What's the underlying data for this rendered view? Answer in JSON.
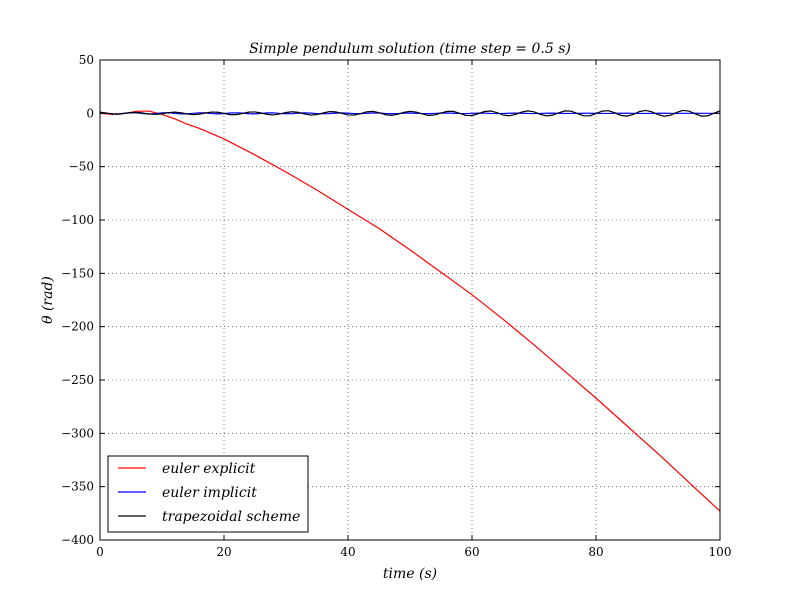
{
  "chart_data": {
    "type": "line",
    "title": "Simple pendulum solution (time step = 0.5 s)",
    "xlabel": "time (s)",
    "ylabel": "θ (rad)",
    "xlim": [
      0,
      100
    ],
    "ylim": [
      -400,
      50
    ],
    "xticks": [
      0,
      20,
      40,
      60,
      80,
      100
    ],
    "yticks": [
      50,
      0,
      -50,
      -100,
      -150,
      -200,
      -250,
      -300,
      -350,
      -400
    ],
    "xtick_labels": [
      "0",
      "20",
      "40",
      "60",
      "80",
      "100"
    ],
    "ytick_labels": [
      "50",
      "0",
      "−50",
      "−100",
      "−150",
      "−200",
      "−250",
      "−300",
      "−350",
      "−400"
    ],
    "grid": true,
    "legend_position": "lower-left",
    "series": [
      {
        "name": "euler explicit",
        "color": "#ff0000",
        "x": [
          0,
          2,
          4,
          6,
          8,
          10,
          12,
          14,
          16,
          18,
          20,
          25,
          30,
          35,
          40,
          45,
          50,
          55,
          60,
          65,
          70,
          75,
          80,
          85,
          90,
          95,
          100
        ],
        "y": [
          0,
          -1,
          0,
          2,
          2,
          -1,
          -5,
          -10,
          -14,
          -19,
          -24,
          -39,
          -55,
          -72,
          -90,
          -108,
          -128,
          -149,
          -170,
          -193,
          -217,
          -242,
          -267,
          -293,
          -319,
          -346,
          -373
        ]
      },
      {
        "name": "euler implicit",
        "color": "#0000ff",
        "x": [
          0,
          1,
          2,
          3,
          4,
          5,
          6,
          7,
          8,
          9,
          10,
          11,
          12,
          13,
          14,
          15,
          16,
          17,
          18,
          19,
          20,
          21,
          22,
          23,
          24,
          25,
          26,
          27,
          28,
          29,
          30,
          31,
          32,
          33,
          34,
          35,
          36,
          37,
          38,
          39,
          40,
          41,
          42,
          43,
          44,
          45,
          46,
          47,
          48,
          49,
          50,
          51,
          52,
          53,
          54,
          55,
          56,
          57,
          58,
          59,
          60,
          61,
          62,
          63,
          64,
          65,
          66,
          67,
          68,
          69,
          70,
          71,
          72,
          73,
          74,
          75,
          76,
          77,
          78,
          79,
          80,
          81,
          82,
          83,
          84,
          85,
          86,
          87,
          88,
          89,
          90,
          91,
          92,
          93,
          94,
          95,
          96,
          97,
          98,
          99,
          100
        ],
        "y": [
          1.0,
          0.2,
          -0.6,
          -0.6,
          0.1,
          0.6,
          0.4,
          -0.3,
          -0.6,
          -0.2,
          0.4,
          0.6,
          0.1,
          -0.5,
          -0.5,
          0.0,
          0.5,
          0.4,
          -0.2,
          -0.5,
          -0.3,
          0.3,
          0.5,
          0.2,
          -0.4,
          -0.5,
          -0.1,
          0.4,
          0.4,
          -0.1,
          -0.4,
          -0.3,
          0.2,
          0.4,
          0.2,
          -0.2,
          -0.4,
          -0.2,
          0.2,
          0.4,
          0.1,
          -0.3,
          -0.3,
          0.0,
          0.3,
          0.3,
          -0.1,
          -0.3,
          -0.2,
          0.2,
          0.3,
          0.1,
          -0.2,
          -0.3,
          -0.1,
          0.2,
          0.3,
          0.1,
          -0.2,
          -0.2,
          0.0,
          0.2,
          0.2,
          -0.1,
          -0.2,
          -0.1,
          0.1,
          0.2,
          0.1,
          -0.1,
          -0.2,
          -0.1,
          0.1,
          0.2,
          0.0,
          -0.1,
          -0.1,
          0.0,
          0.1,
          0.1,
          0.0,
          -0.1,
          -0.1,
          0.0,
          0.1,
          0.1,
          0.0,
          -0.1,
          -0.1,
          0.0,
          0.1,
          0.1,
          0.0,
          -0.1,
          0.0,
          0.0,
          0.1,
          0.0,
          0.0,
          0.0,
          0.0
        ]
      },
      {
        "name": "trapezoidal scheme",
        "color": "#000000",
        "x": [
          0,
          1,
          2,
          3,
          4,
          5,
          6,
          7,
          8,
          9,
          10,
          11,
          12,
          13,
          14,
          15,
          16,
          17,
          18,
          19,
          20,
          21,
          22,
          23,
          24,
          25,
          26,
          27,
          28,
          29,
          30,
          31,
          32,
          33,
          34,
          35,
          36,
          37,
          38,
          39,
          40,
          41,
          42,
          43,
          44,
          45,
          46,
          47,
          48,
          49,
          50,
          51,
          52,
          53,
          54,
          55,
          56,
          57,
          58,
          59,
          60,
          61,
          62,
          63,
          64,
          65,
          66,
          67,
          68,
          69,
          70,
          71,
          72,
          73,
          74,
          75,
          76,
          77,
          78,
          79,
          80,
          81,
          82,
          83,
          84,
          85,
          86,
          87,
          88,
          89,
          90,
          91,
          92,
          93,
          94,
          95,
          96,
          97,
          98,
          99,
          100
        ],
        "y": [
          1.0,
          0.2,
          -0.6,
          -0.8,
          -0.1,
          0.7,
          0.9,
          0.2,
          -0.7,
          -1.0,
          -0.4,
          0.6,
          1.1,
          0.6,
          -0.5,
          -1.2,
          -0.8,
          0.3,
          1.2,
          1.0,
          -0.1,
          -1.2,
          -1.2,
          -0.1,
          1.1,
          1.3,
          0.3,
          -1.0,
          -1.5,
          -0.6,
          0.8,
          1.5,
          0.9,
          -0.6,
          -1.6,
          -1.1,
          0.3,
          1.6,
          1.4,
          0.0,
          -1.5,
          -1.6,
          -0.3,
          1.4,
          1.8,
          0.6,
          -1.2,
          -1.9,
          -0.9,
          0.9,
          1.9,
          1.2,
          -0.6,
          -2.0,
          -1.5,
          0.3,
          1.9,
          1.8,
          0.0,
          -1.9,
          -2.0,
          -0.4,
          1.7,
          2.2,
          0.7,
          -1.5,
          -2.3,
          -1.0,
          1.2,
          2.3,
          1.4,
          -0.9,
          -2.4,
          -1.7,
          0.5,
          2.3,
          2.0,
          -0.2,
          -2.3,
          -2.3,
          -0.2,
          2.1,
          2.5,
          0.6,
          -1.9,
          -2.6,
          -1.0,
          1.6,
          2.7,
          1.4,
          -1.2,
          -2.7,
          -1.8,
          0.8,
          2.7,
          2.1,
          -0.4,
          -2.6,
          -2.4,
          0.0,
          2.4
        ]
      }
    ]
  }
}
